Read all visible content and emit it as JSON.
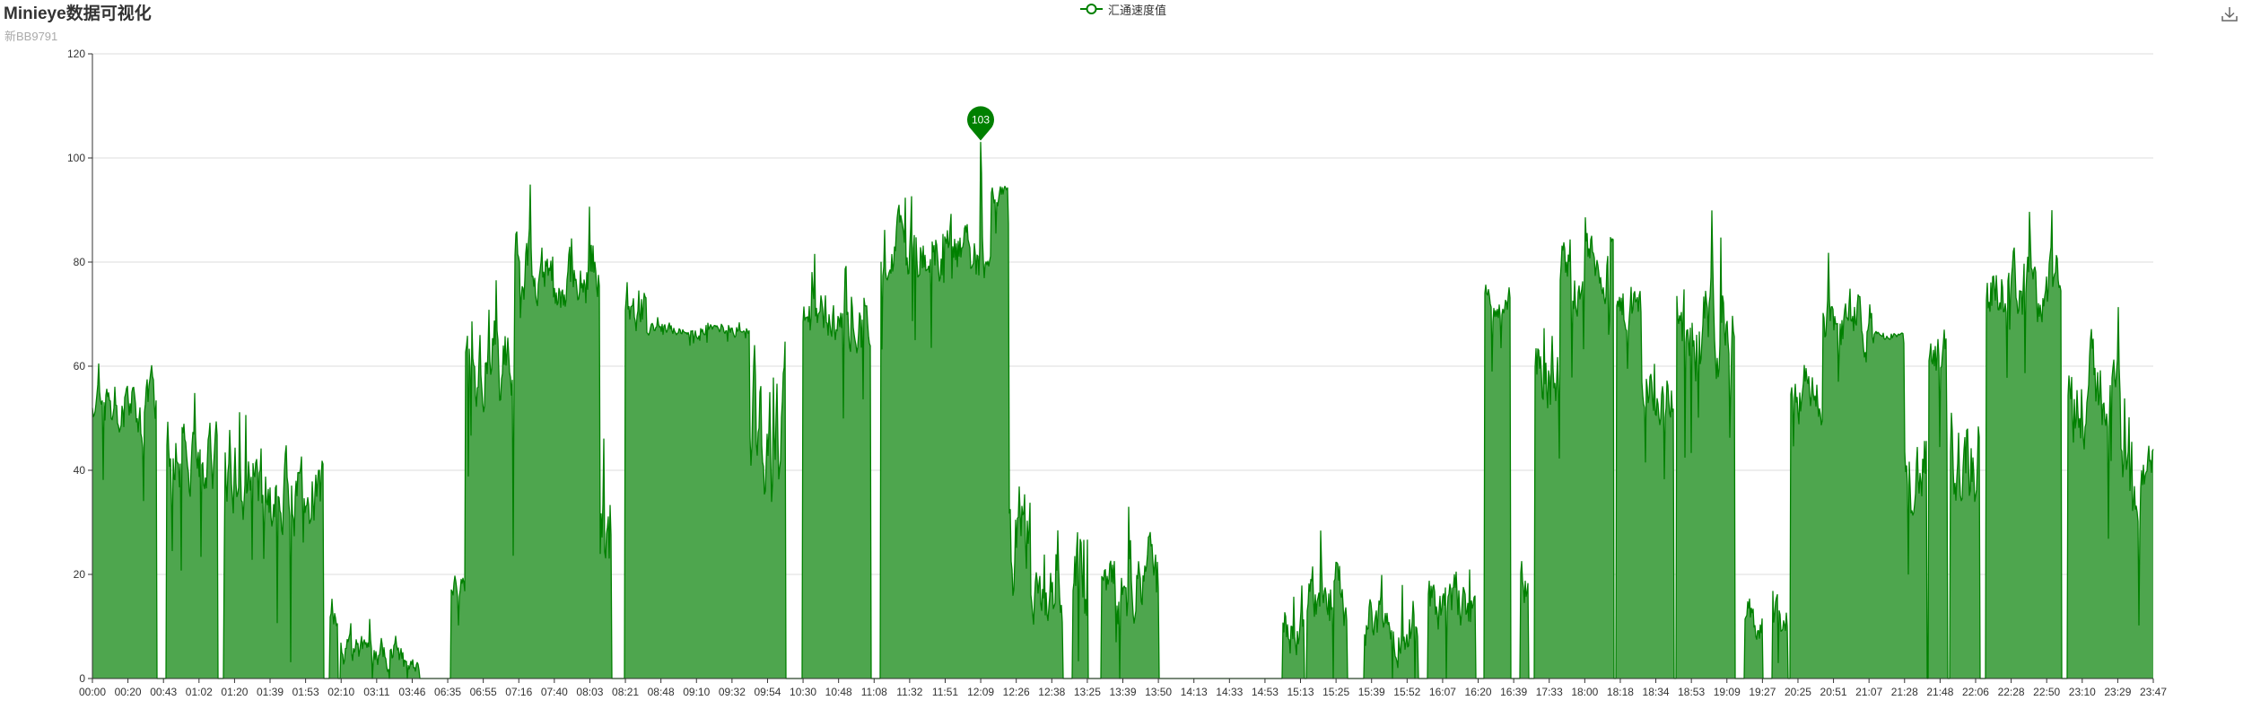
{
  "title": "Minieye数据可视化",
  "subtitle": "新BB9791",
  "toolbox": {
    "download_icon": "download-icon"
  },
  "chart_data": {
    "type": "area",
    "title": "Minieye数据可视化",
    "subtitle": "新BB9791",
    "legend": [
      "汇通速度值"
    ],
    "legend_position": "top-center",
    "grid": true,
    "ylim": [
      0,
      120
    ],
    "yticks": [
      0,
      20,
      40,
      60,
      80,
      100,
      120
    ],
    "xticks": [
      "00:00",
      "00:20",
      "00:43",
      "01:02",
      "01:20",
      "01:39",
      "01:53",
      "02:10",
      "03:11",
      "03:46",
      "06:35",
      "06:55",
      "07:16",
      "07:40",
      "08:03",
      "08:21",
      "08:48",
      "09:10",
      "09:32",
      "09:54",
      "10:30",
      "10:48",
      "11:08",
      "11:32",
      "11:51",
      "12:09",
      "12:26",
      "12:38",
      "13:25",
      "13:39",
      "13:50",
      "14:13",
      "14:33",
      "14:53",
      "15:13",
      "15:25",
      "15:39",
      "15:52",
      "16:07",
      "16:20",
      "16:39",
      "17:33",
      "18:00",
      "18:18",
      "18:34",
      "18:53",
      "19:09",
      "19:27",
      "20:25",
      "20:51",
      "21:07",
      "21:28",
      "21:48",
      "22:06",
      "22:28",
      "22:50",
      "23:10",
      "23:29",
      "23:47"
    ],
    "series": [
      {
        "name": "汇通速度值",
        "color": "#008000",
        "fill": "#4ea64e",
        "max_marker": {
          "value": 103,
          "x_index": 25
        },
        "segments": [
          {
            "x0": 0.0,
            "x1": 0.9,
            "base": 54,
            "amp": 10
          },
          {
            "x0": 0.9,
            "x1": 1.8,
            "base": 52,
            "amp": 10
          },
          {
            "x0": 2.1,
            "x1": 3.5,
            "base": 42,
            "amp": 12
          },
          {
            "x0": 3.7,
            "x1": 4.8,
            "base": 38,
            "amp": 14
          },
          {
            "x0": 4.8,
            "x1": 6.5,
            "base": 36,
            "amp": 14
          },
          {
            "x0": 6.7,
            "x1": 6.9,
            "base": 12,
            "amp": 8
          },
          {
            "x0": 7.0,
            "x1": 9.2,
            "base": 5,
            "amp": 5
          },
          {
            "x0": 10.1,
            "x1": 10.5,
            "base": 18,
            "amp": 5
          },
          {
            "x0": 10.5,
            "x1": 11.9,
            "base": 60,
            "amp": 15
          },
          {
            "x0": 11.9,
            "x1": 14.3,
            "base": 80,
            "amp": 12
          },
          {
            "x0": 14.3,
            "x1": 14.6,
            "base": 30,
            "amp": 20
          },
          {
            "x0": 15.0,
            "x1": 15.6,
            "base": 70,
            "amp": 10
          },
          {
            "x0": 15.6,
            "x1": 18.5,
            "base": 67,
            "amp": 2
          },
          {
            "x0": 18.5,
            "x1": 19.5,
            "base": 45,
            "amp": 25
          },
          {
            "x0": 20.0,
            "x1": 21.9,
            "base": 68,
            "amp": 10
          },
          {
            "x0": 22.2,
            "x1": 25.3,
            "base": 82,
            "amp": 10
          },
          {
            "x0": 25.3,
            "x1": 25.8,
            "base": 92,
            "amp": 4
          },
          {
            "x0": 25.8,
            "x1": 26.4,
            "base": 25,
            "amp": 20
          },
          {
            "x0": 26.4,
            "x1": 27.3,
            "base": 15,
            "amp": 10
          },
          {
            "x0": 27.6,
            "x1": 28.0,
            "base": 20,
            "amp": 18
          },
          {
            "x0": 28.4,
            "x1": 30.0,
            "base": 18,
            "amp": 14
          },
          {
            "x0": 33.5,
            "x1": 34.1,
            "base": 12,
            "amp": 10
          },
          {
            "x0": 34.2,
            "x1": 35.3,
            "base": 15,
            "amp": 12
          },
          {
            "x0": 35.8,
            "x1": 37.3,
            "base": 12,
            "amp": 10
          },
          {
            "x0": 37.6,
            "x1": 38.9,
            "base": 15,
            "amp": 10
          },
          {
            "x0": 39.2,
            "x1": 39.9,
            "base": 72,
            "amp": 6
          },
          {
            "x0": 40.2,
            "x1": 40.4,
            "base": 20,
            "amp": 10
          },
          {
            "x0": 40.6,
            "x1": 41.3,
            "base": 60,
            "amp": 15
          },
          {
            "x0": 41.3,
            "x1": 42.8,
            "base": 80,
            "amp": 10
          },
          {
            "x0": 42.9,
            "x1": 43.6,
            "base": 70,
            "amp": 10
          },
          {
            "x0": 43.6,
            "x1": 44.5,
            "base": 55,
            "amp": 10
          },
          {
            "x0": 44.6,
            "x1": 46.2,
            "base": 68,
            "amp": 15
          },
          {
            "x0": 46.5,
            "x1": 47.0,
            "base": 10,
            "amp": 8
          },
          {
            "x0": 47.3,
            "x1": 47.7,
            "base": 10,
            "amp": 8
          },
          {
            "x0": 47.8,
            "x1": 48.7,
            "base": 55,
            "amp": 10
          },
          {
            "x0": 48.7,
            "x1": 50.1,
            "base": 68,
            "amp": 10
          },
          {
            "x0": 50.1,
            "x1": 51.0,
            "base": 66,
            "amp": 1
          },
          {
            "x0": 51.0,
            "x1": 51.6,
            "base": 40,
            "amp": 15
          },
          {
            "x0": 51.7,
            "x1": 52.2,
            "base": 60,
            "amp": 10
          },
          {
            "x0": 52.3,
            "x1": 53.1,
            "base": 45,
            "amp": 20
          },
          {
            "x0": 53.3,
            "x1": 55.4,
            "base": 75,
            "amp": 12
          },
          {
            "x0": 55.6,
            "x1": 57.1,
            "base": 55,
            "amp": 15
          },
          {
            "x0": 57.1,
            "x1": 58.0,
            "base": 40,
            "amp": 12
          }
        ]
      }
    ]
  }
}
